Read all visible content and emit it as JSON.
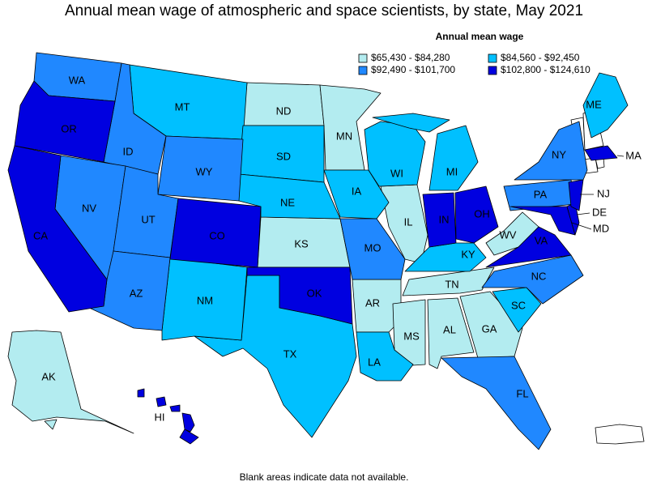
{
  "title": "Annual mean wage of atmospheric and space scientists, by state, May 2021",
  "legend": {
    "title": "Annual mean wage",
    "items": [
      {
        "label": "$65,430 - $84,280",
        "color": "#b3ecf0",
        "states": [
          "ND",
          "MN",
          "KS",
          "IL",
          "AR",
          "MS",
          "AL",
          "GA",
          "TN",
          "WV",
          "AK"
        ]
      },
      {
        "label": "$84,560 - $92,450",
        "color": "#00c0ff",
        "states": [
          "MT",
          "SD",
          "NE",
          "IA",
          "WI",
          "MI",
          "TX",
          "NM",
          "LA",
          "SC",
          "KY",
          "ME"
        ]
      },
      {
        "label": "$92,490 - $101,700",
        "color": "#2088ff",
        "states": [
          "WA",
          "ID",
          "WY",
          "NV",
          "UT",
          "AZ",
          "MO",
          "NY",
          "PA",
          "NC",
          "FL"
        ]
      },
      {
        "label": "$102,800 - $124,610",
        "color": "#0000e0",
        "states": [
          "OR",
          "CA",
          "CO",
          "OK",
          "IN",
          "OH",
          "VA",
          "MD",
          "DE",
          "NJ",
          "MA",
          "HI"
        ]
      }
    ]
  },
  "footnote": "Blank areas indicate data not available."
}
